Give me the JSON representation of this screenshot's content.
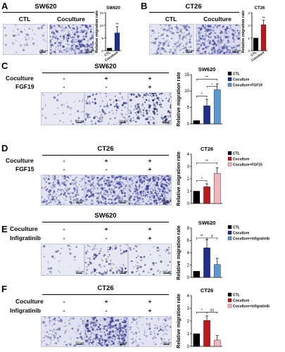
{
  "figure": {
    "panels": {
      "A": {
        "letter": "A",
        "title": "SW620",
        "image_labels": [
          "CTL",
          "Coculture"
        ],
        "scale_label": "200 μm"
      },
      "B": {
        "letter": "B",
        "title": "CT26",
        "image_labels": [
          "CTL",
          "Coculture"
        ],
        "scale_label": "200 μm"
      },
      "C": {
        "letter": "C",
        "title": "SW620",
        "conditions": [
          {
            "label": "Coculture",
            "marks": [
              "-",
              "+",
              "+"
            ]
          },
          {
            "label": "FGF19",
            "marks": [
              "-",
              "-",
              "+"
            ]
          }
        ],
        "scale_label": "200 μm"
      },
      "D": {
        "letter": "D",
        "title": "CT26",
        "conditions": [
          {
            "label": "Coculture",
            "marks": [
              "-",
              "+",
              "+"
            ]
          },
          {
            "label": "FGF15",
            "marks": [
              "-",
              "-",
              "+"
            ]
          }
        ],
        "scale_label": "200 μm"
      },
      "E": {
        "letter": "E",
        "title": "SW620",
        "conditions": [
          {
            "label": "Coculture",
            "marks": [
              "-",
              "+",
              "+"
            ]
          },
          {
            "label": "Infigratinib",
            "marks": [
              "-",
              "-",
              "+"
            ]
          }
        ],
        "scale_label": "200 μm"
      },
      "F": {
        "letter": "F",
        "title": "CT26",
        "conditions": [
          {
            "label": "Coculture",
            "marks": [
              "-",
              "+",
              "+"
            ]
          },
          {
            "label": "Infigratinib",
            "marks": [
              "-",
              "-",
              "+"
            ]
          }
        ],
        "scale_label": "200 μm"
      }
    }
  },
  "chart_data": [
    {
      "id": "A",
      "type": "bar",
      "title": "SW620",
      "ylabel": "Relative migration rate",
      "categories": [
        "CTL",
        "Coculture"
      ],
      "values": [
        1,
        7
      ],
      "errors": [
        0,
        2.5
      ],
      "colors": [
        "#000000",
        "#1f2f8f"
      ],
      "ylim": [
        0,
        15
      ],
      "yticks": [
        0,
        5,
        10,
        15
      ],
      "significance": [
        "",
        "**"
      ],
      "legend": []
    },
    {
      "id": "B",
      "type": "bar",
      "title": "CT26",
      "ylabel": "Relative migration rate",
      "categories": [
        "CTL",
        "Coculture"
      ],
      "values": [
        1,
        2.05
      ],
      "errors": [
        0,
        0.35
      ],
      "colors": [
        "#000000",
        "#c0171c"
      ],
      "ylim": [
        0,
        3
      ],
      "yticks": [
        0,
        1,
        2,
        3
      ],
      "significance": [
        "",
        "**"
      ],
      "legend": []
    },
    {
      "id": "C",
      "type": "bar",
      "title": "SW620",
      "ylabel": "Relative migration rate",
      "categories": [
        "CTL",
        "Coculture",
        "Coculture+FGF19"
      ],
      "values": [
        1,
        5.5,
        10.4
      ],
      "errors": [
        0,
        2.0,
        1.8
      ],
      "colors": [
        "#000000",
        "#1f2f8f",
        "#5b9bd5"
      ],
      "ylim": [
        0,
        15
      ],
      "yticks": [
        0,
        5,
        10,
        15
      ],
      "brackets": [
        {
          "from": 0,
          "to": 1,
          "label": "*",
          "y": 8.5
        },
        {
          "from": 0,
          "to": 2,
          "label": "**",
          "y": 13.6
        },
        {
          "from": 1,
          "to": 2,
          "label": "*",
          "y": 11.4
        }
      ],
      "legend": [
        "CTL",
        "Coculture",
        "Coculture+FGF19"
      ]
    },
    {
      "id": "D",
      "type": "bar",
      "title": "CT26",
      "ylabel": "Relative migration rate",
      "categories": [
        "CTL",
        "Coculture",
        "Coculture+FGF15"
      ],
      "values": [
        1,
        1.35,
        2.45
      ],
      "errors": [
        0,
        0.25,
        0.45
      ],
      "colors": [
        "#000000",
        "#c0171c",
        "#f4b6bc"
      ],
      "ylim": [
        0,
        4
      ],
      "yticks": [
        0,
        1,
        2,
        3,
        4
      ],
      "brackets": [
        {
          "from": 0,
          "to": 1,
          "label": "*",
          "y": 1.85
        },
        {
          "from": 0,
          "to": 2,
          "label": "**",
          "y": 3.3
        }
      ],
      "legend": [
        "CTL",
        "Coculture",
        "Coculture+FGF15"
      ]
    },
    {
      "id": "E",
      "type": "bar",
      "title": "SW620",
      "ylabel": "Relative migration rate",
      "categories": [
        "CTL",
        "Coculture",
        "Coculture+Infigratinib"
      ],
      "values": [
        1,
        4.8,
        2.1
      ],
      "errors": [
        0,
        1.3,
        1.0
      ],
      "colors": [
        "#000000",
        "#1f2f8f",
        "#5b9bd5"
      ],
      "ylim": [
        0,
        8
      ],
      "yticks": [
        0,
        2,
        4,
        6,
        8
      ],
      "brackets": [
        {
          "from": 0,
          "to": 1,
          "label": "**",
          "y": 6.4
        },
        {
          "from": 1,
          "to": 2,
          "label": "#",
          "y": 6.4
        }
      ],
      "legend": [
        "CTL",
        "Coculture",
        "Coculture+Infigratinib"
      ]
    },
    {
      "id": "F",
      "type": "bar",
      "title": "CT26",
      "ylabel": "Relative migration rate",
      "categories": [
        "CTL",
        "Coculture",
        "Coculture+Infigratinib"
      ],
      "values": [
        1,
        2.05,
        0.5
      ],
      "errors": [
        0,
        0.35,
        0.35
      ],
      "colors": [
        "#000000",
        "#c0171c",
        "#f4b6bc"
      ],
      "ylim": [
        0,
        4
      ],
      "yticks": [
        0,
        1,
        2,
        3,
        4
      ],
      "brackets": [
        {
          "from": 0,
          "to": 1,
          "label": "*",
          "y": 2.7
        },
        {
          "from": 1,
          "to": 2,
          "label": "##",
          "y": 2.7
        }
      ],
      "legend": [
        "CTL",
        "Coculture",
        "Coculture+Infigratinib"
      ]
    }
  ]
}
